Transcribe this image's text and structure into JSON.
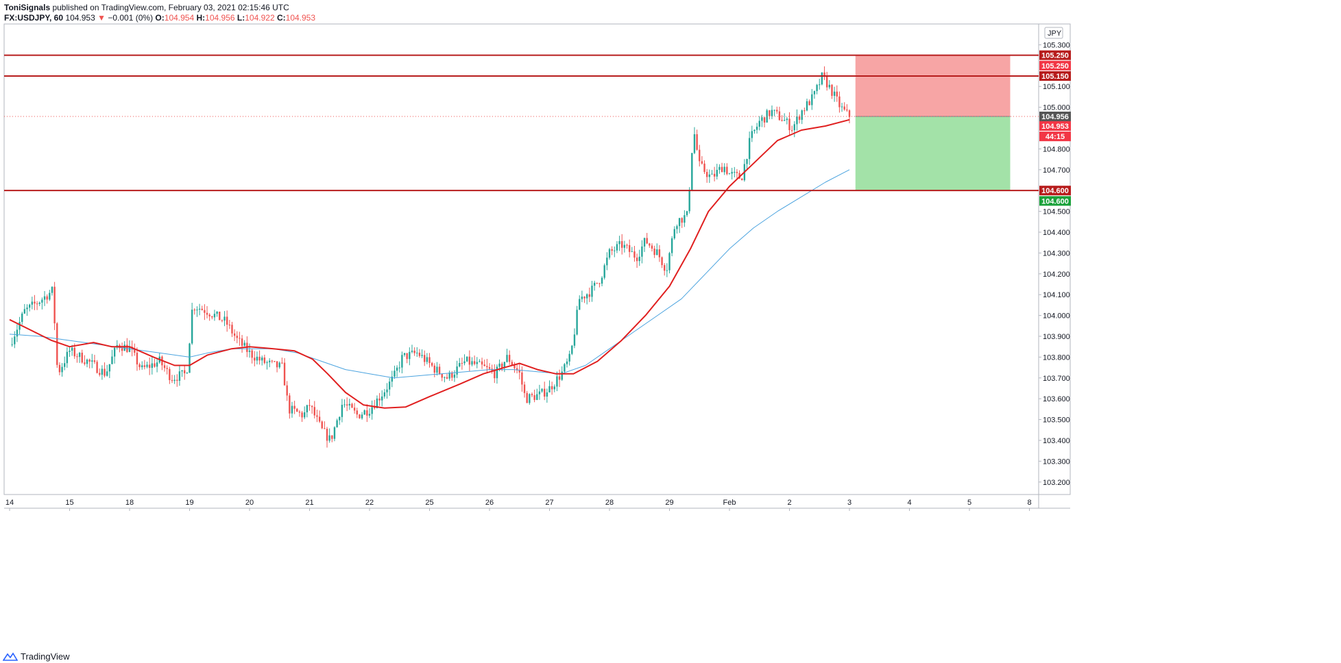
{
  "header": {
    "author": "ToniSignals",
    "published": " published on TradingView.com, February 03, 2021 02:15:46 UTC",
    "symbol": "FX:USDJPY, 60",
    "last": "104.953",
    "change": "−0.001 (0%)",
    "o_label": "O:",
    "o": "104.954",
    "h_label": "H:",
    "h": "104.956",
    "l_label": "L:",
    "l": "104.922",
    "c_label": "C:",
    "c": "104.953"
  },
  "footer": {
    "brand": "TradingView"
  },
  "colors": {
    "up": "#26a69a",
    "up_body": "#26a69a",
    "down": "#ef5350",
    "ma_fast": "#e01f1f",
    "ma_slow": "#4aa3df",
    "level": "#b71c1c",
    "stop_zone": "#f7a0a0",
    "target_zone": "#9ee0a3"
  },
  "chart_data": {
    "type": "candlestick",
    "symbol": "USDJPY",
    "timeframe": "60",
    "currency": "JPY",
    "ylim": [
      103.14,
      105.4
    ],
    "y_ticks": [
      "105.300",
      "105.100",
      "105.000",
      "104.800",
      "104.700",
      "104.500",
      "104.400",
      "104.300",
      "104.200",
      "104.100",
      "104.000",
      "103.900",
      "103.800",
      "103.700",
      "103.600",
      "103.500",
      "103.400",
      "103.300",
      "103.200"
    ],
    "x_labels": [
      {
        "label": "14",
        "day": 0
      },
      {
        "label": "15",
        "day": 1
      },
      {
        "label": "18",
        "day": 2
      },
      {
        "label": "19",
        "day": 3
      },
      {
        "label": "20",
        "day": 4
      },
      {
        "label": "21",
        "day": 5
      },
      {
        "label": "22",
        "day": 6
      },
      {
        "label": "25",
        "day": 7
      },
      {
        "label": "26",
        "day": 8
      },
      {
        "label": "27",
        "day": 9
      },
      {
        "label": "28",
        "day": 10
      },
      {
        "label": "29",
        "day": 11
      },
      {
        "label": "Feb",
        "day": 12
      },
      {
        "label": "2",
        "day": 13
      },
      {
        "label": "3",
        "day": 14
      },
      {
        "label": "4",
        "day": 15
      },
      {
        "label": "5",
        "day": 16
      },
      {
        "label": "8",
        "day": 17
      }
    ],
    "close_path": [
      [
        0.0,
        103.86
      ],
      [
        0.25,
        104.02
      ],
      [
        0.5,
        104.07
      ],
      [
        0.72,
        104.12
      ],
      [
        0.8,
        103.72
      ],
      [
        1.0,
        103.83
      ],
      [
        1.3,
        103.78
      ],
      [
        1.6,
        103.72
      ],
      [
        1.8,
        103.86
      ],
      [
        2.0,
        103.84
      ],
      [
        2.2,
        103.74
      ],
      [
        2.5,
        103.78
      ],
      [
        2.7,
        103.7
      ],
      [
        2.95,
        103.72
      ],
      [
        3.05,
        104.05
      ],
      [
        3.3,
        104.02
      ],
      [
        3.6,
        103.97
      ],
      [
        3.8,
        103.88
      ],
      [
        4.0,
        103.82
      ],
      [
        4.2,
        103.78
      ],
      [
        4.4,
        103.76
      ],
      [
        4.55,
        103.75
      ],
      [
        4.65,
        103.55
      ],
      [
        4.9,
        103.52
      ],
      [
        5.0,
        103.57
      ],
      [
        5.2,
        103.45
      ],
      [
        5.35,
        103.4
      ],
      [
        5.55,
        103.58
      ],
      [
        5.8,
        103.52
      ],
      [
        6.0,
        103.55
      ],
      [
        6.2,
        103.62
      ],
      [
        6.4,
        103.7
      ],
      [
        6.55,
        103.8
      ],
      [
        6.8,
        103.82
      ],
      [
        7.1,
        103.74
      ],
      [
        7.3,
        103.7
      ],
      [
        7.6,
        103.78
      ],
      [
        7.9,
        103.75
      ],
      [
        8.1,
        103.72
      ],
      [
        8.3,
        103.8
      ],
      [
        8.5,
        103.72
      ],
      [
        8.6,
        103.6
      ],
      [
        8.85,
        103.62
      ],
      [
        9.0,
        103.65
      ],
      [
        9.2,
        103.72
      ],
      [
        9.35,
        103.8
      ],
      [
        9.5,
        104.08
      ],
      [
        9.7,
        104.12
      ],
      [
        9.85,
        104.18
      ],
      [
        10.0,
        104.3
      ],
      [
        10.2,
        104.34
      ],
      [
        10.45,
        104.28
      ],
      [
        10.6,
        104.36
      ],
      [
        10.8,
        104.3
      ],
      [
        10.95,
        104.22
      ],
      [
        11.1,
        104.45
      ],
      [
        11.3,
        104.48
      ],
      [
        11.4,
        104.9
      ],
      [
        11.5,
        104.72
      ],
      [
        11.7,
        104.66
      ],
      [
        11.9,
        104.72
      ],
      [
        12.0,
        104.68
      ],
      [
        12.2,
        104.66
      ],
      [
        12.35,
        104.85
      ],
      [
        12.5,
        104.93
      ],
      [
        12.7,
        104.98
      ],
      [
        12.9,
        104.94
      ],
      [
        13.05,
        104.9
      ],
      [
        13.2,
        104.98
      ],
      [
        13.4,
        105.05
      ],
      [
        13.55,
        105.15
      ],
      [
        13.7,
        105.08
      ],
      [
        13.85,
        105.0
      ],
      [
        14.0,
        104.953
      ]
    ],
    "ma_fast": {
      "color": "#e01f1f",
      "points": [
        [
          0.0,
          103.98
        ],
        [
          0.35,
          103.93
        ],
        [
          0.7,
          103.88
        ],
        [
          1.0,
          103.85
        ],
        [
          1.4,
          103.87
        ],
        [
          1.7,
          103.85
        ],
        [
          2.0,
          103.85
        ],
        [
          2.4,
          103.8
        ],
        [
          2.75,
          103.76
        ],
        [
          3.0,
          103.76
        ],
        [
          3.3,
          103.81
        ],
        [
          3.7,
          103.84
        ],
        [
          4.0,
          103.85
        ],
        [
          4.4,
          103.84
        ],
        [
          4.75,
          103.83
        ],
        [
          5.05,
          103.79
        ],
        [
          5.3,
          103.72
        ],
        [
          5.6,
          103.63
        ],
        [
          5.9,
          103.57
        ],
        [
          6.25,
          103.555
        ],
        [
          6.6,
          103.56
        ],
        [
          7.0,
          103.61
        ],
        [
          7.5,
          103.67
        ],
        [
          7.9,
          103.72
        ],
        [
          8.25,
          103.75
        ],
        [
          8.5,
          103.77
        ],
        [
          8.8,
          103.74
        ],
        [
          9.1,
          103.72
        ],
        [
          9.4,
          103.72
        ],
        [
          9.8,
          103.78
        ],
        [
          10.2,
          103.88
        ],
        [
          10.6,
          104.0
        ],
        [
          11.0,
          104.14
        ],
        [
          11.35,
          104.32
        ],
        [
          11.65,
          104.5
        ],
        [
          12.0,
          104.62
        ],
        [
          12.4,
          104.73
        ],
        [
          12.8,
          104.84
        ],
        [
          13.2,
          104.89
        ],
        [
          13.6,
          104.91
        ],
        [
          14.0,
          104.94
        ]
      ]
    },
    "ma_slow": {
      "color": "#4aa3df",
      "points": [
        [
          0.0,
          103.91
        ],
        [
          0.5,
          103.9
        ],
        [
          1.0,
          103.88
        ],
        [
          1.5,
          103.86
        ],
        [
          2.0,
          103.84
        ],
        [
          2.5,
          103.82
        ],
        [
          3.0,
          103.8
        ],
        [
          3.3,
          103.82
        ],
        [
          3.7,
          103.84
        ],
        [
          4.0,
          103.84
        ],
        [
          4.4,
          103.84
        ],
        [
          4.8,
          103.82
        ],
        [
          5.2,
          103.78
        ],
        [
          5.6,
          103.74
        ],
        [
          6.0,
          103.72
        ],
        [
          6.4,
          103.7
        ],
        [
          6.8,
          103.71
        ],
        [
          7.2,
          103.72
        ],
        [
          7.6,
          103.73
        ],
        [
          8.0,
          103.74
        ],
        [
          8.4,
          103.74
        ],
        [
          8.8,
          103.73
        ],
        [
          9.2,
          103.72
        ],
        [
          9.6,
          103.76
        ],
        [
          10.0,
          103.84
        ],
        [
          10.4,
          103.92
        ],
        [
          10.8,
          104.0
        ],
        [
          11.2,
          104.08
        ],
        [
          11.6,
          104.2
        ],
        [
          12.0,
          104.32
        ],
        [
          12.4,
          104.42
        ],
        [
          12.8,
          104.5
        ],
        [
          13.2,
          104.57
        ],
        [
          13.6,
          104.64
        ],
        [
          14.0,
          104.7
        ]
      ]
    },
    "levels": [
      {
        "value": 105.25,
        "label": "105.250"
      },
      {
        "value": 105.15,
        "label": "105.150"
      },
      {
        "value": 104.6,
        "label": "104.600"
      }
    ],
    "position": {
      "type": "short",
      "entry": 104.956,
      "stop": 105.25,
      "target": 104.6,
      "start_day": 14.1,
      "end_day": 16.68
    },
    "price_tags": [
      {
        "label": "105.250",
        "value": 105.25,
        "color": "#b71c1c"
      },
      {
        "label": "105.250",
        "value": 105.2,
        "color": "#f23645"
      },
      {
        "label": "105.150",
        "value": 105.15,
        "color": "#b71c1c"
      },
      {
        "label": "104.956",
        "value": 104.956,
        "color": "#555555"
      },
      {
        "label": "104.953",
        "value": 104.91,
        "color": "#f23645"
      },
      {
        "label": "44:15",
        "value": 104.86,
        "color": "#f23645"
      },
      {
        "label": "104.600",
        "value": 104.6,
        "color": "#b71c1c"
      },
      {
        "label": "104.600",
        "value": 104.55,
        "color": "#1aa13a"
      }
    ]
  }
}
